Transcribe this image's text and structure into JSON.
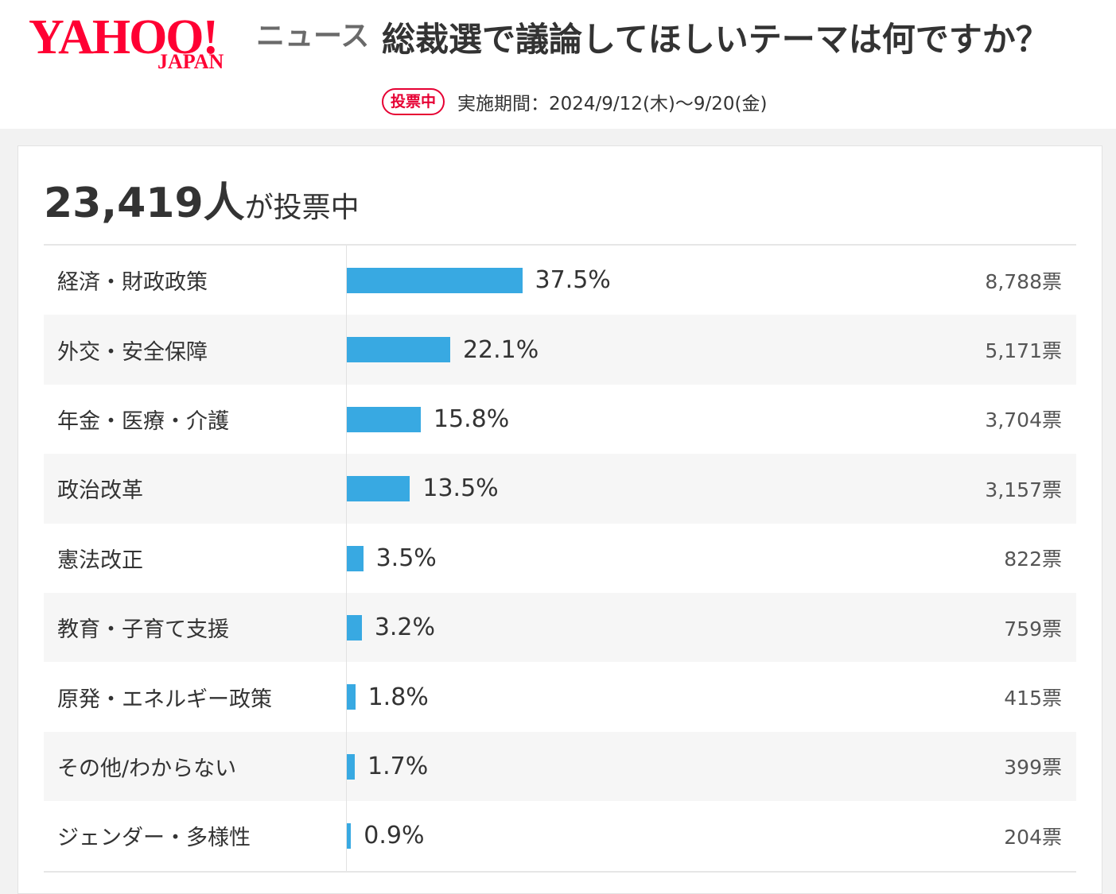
{
  "header": {
    "logo_main": "YAHOO!",
    "logo_sub": "JAPAN",
    "service": "ニュース",
    "title": "総裁選で議論してほしいテーマは何ですか？",
    "badge": "投票中",
    "period": "実施期間：2024/9/12(木)〜9/20(金)",
    "brand_color": "#ff0033"
  },
  "summary": {
    "total_count": "23,419人",
    "total_suffix": "が投票中"
  },
  "chart_data": {
    "type": "bar",
    "orientation": "horizontal",
    "title": "総裁選で議論してほしいテーマは何ですか？",
    "bar_color": "#38a9e2",
    "categories": [
      "経済・財政政策",
      "外交・安全保障",
      "年金・医療・介護",
      "政治改革",
      "憲法改正",
      "教育・子育て支援",
      "原発・エネルギー政策",
      "その他/わからない",
      "ジェンダー・多様性"
    ],
    "values": [
      37.5,
      22.1,
      15.8,
      13.5,
      3.5,
      3.2,
      1.8,
      1.7,
      0.9
    ],
    "value_labels": [
      "37.5%",
      "22.1%",
      "15.8%",
      "13.5%",
      "3.5%",
      "3.2%",
      "1.8%",
      "1.7%",
      "0.9%"
    ],
    "votes": [
      "8,788票",
      "5,171票",
      "3,704票",
      "3,157票",
      "822票",
      "759票",
      "415票",
      "399票",
      "204票"
    ]
  }
}
